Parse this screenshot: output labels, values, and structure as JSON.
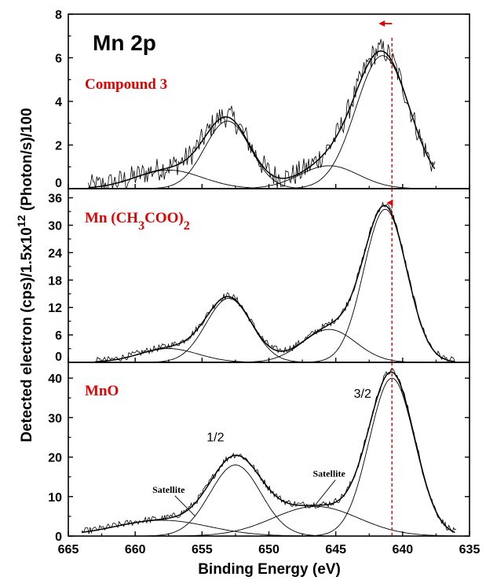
{
  "figure": {
    "title": "Mn 2p",
    "xlabel": "Binding Energy (eV)",
    "ylabel_main": "Detected electron (cps)/1.5x10",
    "ylabel_exp": "12",
    "ylabel_tail": " (Photon/s)/100"
  },
  "chart_data": [
    {
      "type": "line",
      "panel": "top",
      "label_parts": [
        {
          "text": "Compound 3",
          "sub": false
        }
      ],
      "xlim": [
        665,
        635
      ],
      "ylim": [
        0,
        8
      ],
      "yticks": [
        0,
        2,
        4,
        6,
        8
      ],
      "xticks": [
        665,
        660,
        655,
        650,
        645,
        640,
        635
      ],
      "marker_line_x": 640.8,
      "arrow": {
        "from": 640.8,
        "to": 641.8
      },
      "fit_components": [
        {
          "center": 641.5,
          "amp": 6.1,
          "sigma": 2.0
        },
        {
          "center": 653.1,
          "amp": 3.1,
          "sigma": 1.7
        },
        {
          "center": 645.5,
          "amp": 1.05,
          "sigma": 2.2
        },
        {
          "center": 657.5,
          "amp": 0.85,
          "sigma": 2.5
        }
      ],
      "x_range": [
        663.5,
        637.5
      ],
      "noise": 0.55,
      "annotations": []
    },
    {
      "type": "line",
      "panel": "middle",
      "label_parts": [
        {
          "text": "Mn (CH",
          "sub": false
        },
        {
          "text": "3",
          "sub": true
        },
        {
          "text": "COO)",
          "sub": false
        },
        {
          "text": "2",
          "sub": true
        }
      ],
      "xlim": [
        665,
        635
      ],
      "ylim": [
        0,
        38
      ],
      "yticks": [
        0,
        6,
        12,
        18,
        24,
        30,
        36
      ],
      "xticks": [
        665,
        660,
        655,
        650,
        645,
        640,
        635
      ],
      "marker_line_x": 640.8,
      "arrow": {
        "from": 640.8,
        "to": 641.2
      },
      "fit_components": [
        {
          "center": 641.3,
          "amp": 33.5,
          "sigma": 1.6
        },
        {
          "center": 653.0,
          "amp": 14.0,
          "sigma": 1.7
        },
        {
          "center": 645.5,
          "amp": 7.2,
          "sigma": 2.0
        },
        {
          "center": 657.5,
          "amp": 3.0,
          "sigma": 2.2
        }
      ],
      "x_range": [
        663.0,
        636.0
      ],
      "noise": 0.45,
      "annotations": []
    },
    {
      "type": "line",
      "panel": "bottom",
      "label_parts": [
        {
          "text": "MnO",
          "sub": false
        }
      ],
      "xlim": [
        665,
        635
      ],
      "ylim": [
        0,
        44
      ],
      "yticks": [
        0,
        10,
        20,
        30,
        40
      ],
      "xticks": [
        665,
        660,
        655,
        650,
        645,
        640,
        635
      ],
      "marker_line_x": 640.8,
      "arrow": null,
      "fit_components": [
        {
          "center": 640.8,
          "amp": 40.0,
          "sigma": 1.7
        },
        {
          "center": 652.5,
          "amp": 18.0,
          "sigma": 1.9
        },
        {
          "center": 646.5,
          "amp": 7.5,
          "sigma": 3.2
        },
        {
          "center": 658.0,
          "amp": 4.0,
          "sigma": 3.5
        }
      ],
      "x_range": [
        664.0,
        636.0
      ],
      "noise": 0.45,
      "annotations": [
        {
          "text": "3/2",
          "x": 643.0,
          "y": 35
        },
        {
          "text": "1/2",
          "x": 654.0,
          "y": 24
        },
        {
          "text": "Satellite",
          "x": 657.5,
          "y": 11,
          "line_to": [
            655.5,
            5
          ]
        },
        {
          "text": "Satellite",
          "x": 645.5,
          "y": 15,
          "line_to": [
            646.5,
            8
          ]
        }
      ]
    }
  ],
  "colors": {
    "axis": "#000000",
    "label": "#e60000",
    "marker": "#e60000",
    "data": "#000000"
  }
}
